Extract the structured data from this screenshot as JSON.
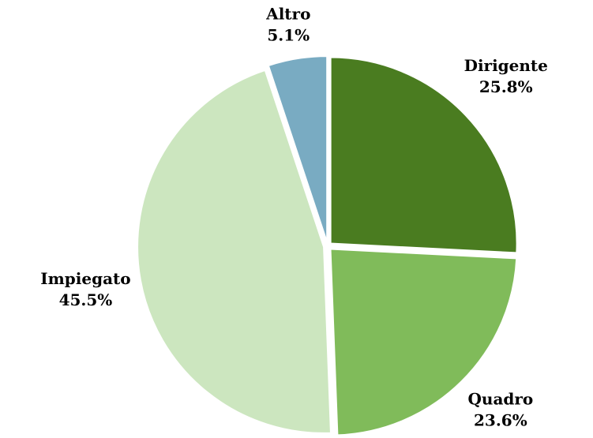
{
  "chart_data": {
    "type": "pie",
    "categories": [
      "Dirigente",
      "Quadro",
      "Impiegato",
      "Altro"
    ],
    "values": [
      25.8,
      23.6,
      45.5,
      5.1
    ],
    "value_labels": [
      "25.8%",
      "23.6%",
      "45.5%",
      "5.1%"
    ],
    "colors": [
      "#4a7c20",
      "#80bb5a",
      "#cce6bf",
      "#79abc2"
    ]
  }
}
